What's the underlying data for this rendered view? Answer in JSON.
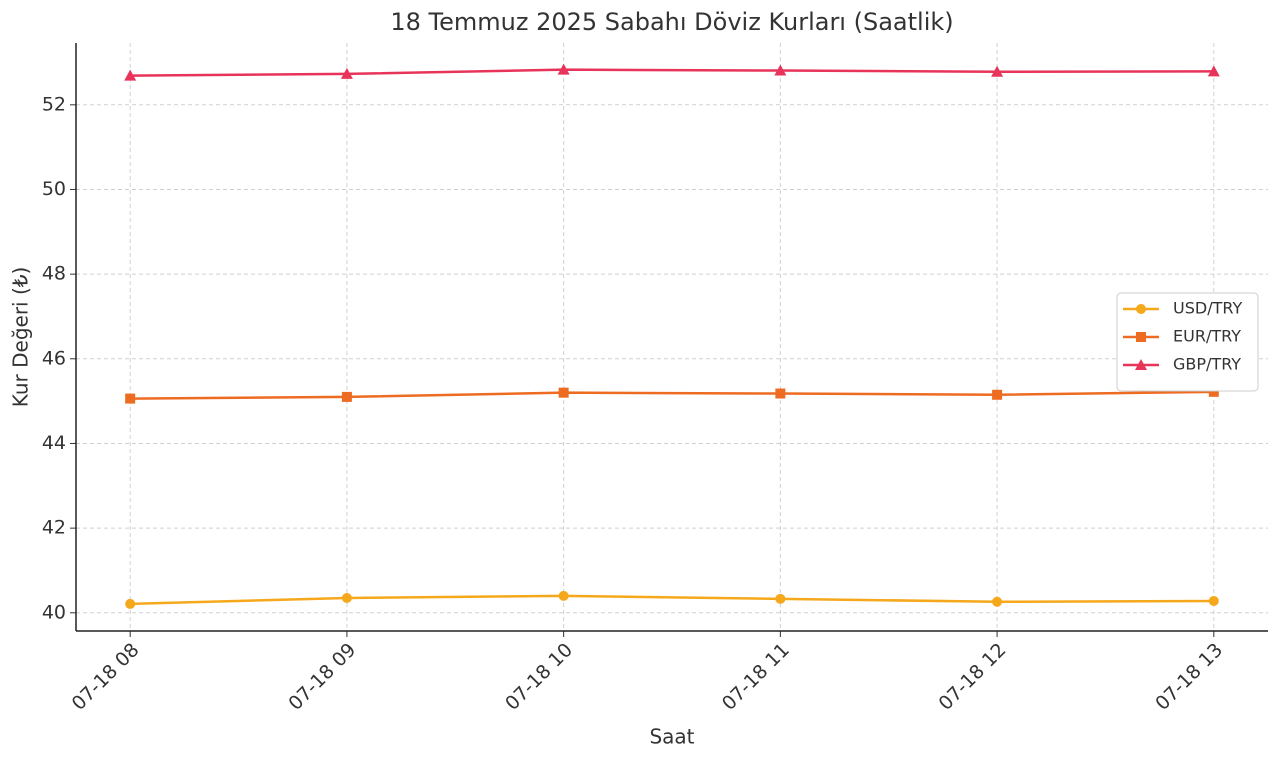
{
  "chart_data": {
    "type": "line",
    "title": "18 Temmuz 2025 Sabahı Döviz Kurları (Saatlik)",
    "x_label": "Saat",
    "y_label": "Kur Değeri (₺)",
    "categories": [
      "07-18 08",
      "07-18 09",
      "07-18 10",
      "07-18 11",
      "07-18 12",
      "07-18 13"
    ],
    "series": [
      {
        "name": "USD/TRY",
        "color": "#f5a81c",
        "marker": "circle",
        "values": [
          40.21,
          40.35,
          40.4,
          40.33,
          40.26,
          40.28
        ]
      },
      {
        "name": "EUR/TRY",
        "color": "#ee6b22",
        "marker": "square",
        "values": [
          45.06,
          45.1,
          45.2,
          45.18,
          45.15,
          45.22
        ]
      },
      {
        "name": "GBP/TRY",
        "color": "#e8345a",
        "marker": "triangle",
        "values": [
          52.69,
          52.73,
          52.83,
          52.81,
          52.78,
          52.79
        ]
      }
    ],
    "ylim": [
      39.57,
      53.46
    ],
    "yticks": [
      40,
      42,
      44,
      46,
      48,
      50,
      52
    ],
    "grid": true,
    "legend": "right"
  }
}
